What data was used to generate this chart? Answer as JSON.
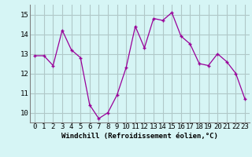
{
  "hours": [
    0,
    1,
    2,
    3,
    4,
    5,
    6,
    7,
    8,
    9,
    10,
    11,
    12,
    13,
    14,
    15,
    16,
    17,
    18,
    19,
    20,
    21,
    22,
    23
  ],
  "values": [
    12.9,
    12.9,
    12.4,
    14.2,
    13.2,
    12.8,
    10.4,
    9.7,
    10.0,
    10.9,
    12.3,
    14.4,
    13.3,
    14.8,
    14.7,
    15.1,
    13.9,
    13.5,
    12.5,
    12.4,
    13.0,
    12.6,
    12.0,
    10.7
  ],
  "xlabel": "Windchill (Refroidissement éolien,°C)",
  "ylim": [
    9.5,
    15.5
  ],
  "yticks": [
    10,
    11,
    12,
    13,
    14,
    15
  ],
  "xticks": [
    0,
    1,
    2,
    3,
    4,
    5,
    6,
    7,
    8,
    9,
    10,
    11,
    12,
    13,
    14,
    15,
    16,
    17,
    18,
    19,
    20,
    21,
    22,
    23
  ],
  "line_color": "#990099",
  "marker": "+",
  "bg_color": "#d6f5f5",
  "grid_color": "#b0c8c8",
  "xlabel_fontsize": 6.5,
  "tick_fontsize": 6.5
}
